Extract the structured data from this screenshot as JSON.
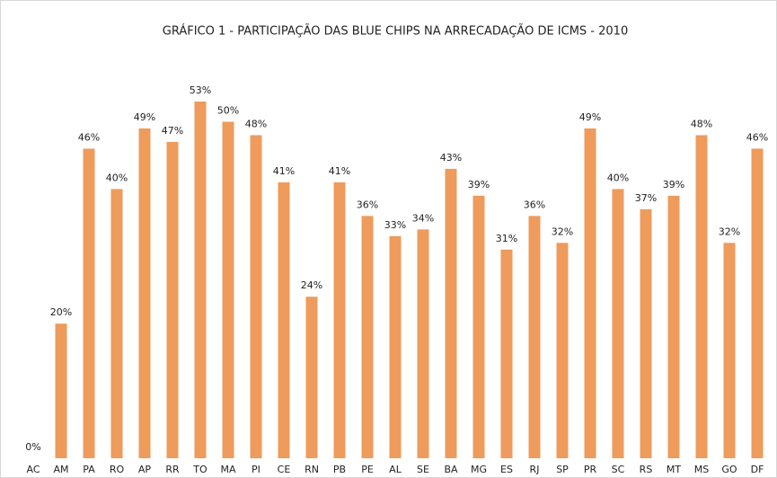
{
  "chart_data": {
    "type": "bar",
    "title": "GRÁFICO 1 - PARTICIPAÇÃO DAS BLUE CHIPS NA ARRECADAÇÃO DE ICMS - 2010",
    "categories": [
      "AC",
      "AM",
      "PA",
      "RO",
      "AP",
      "RR",
      "TO",
      "MA",
      "PI",
      "CE",
      "RN",
      "PB",
      "PE",
      "AL",
      "SE",
      "BA",
      "MG",
      "ES",
      "RJ",
      "SP",
      "PR",
      "SC",
      "RS",
      "MT",
      "MS",
      "GO",
      "DF"
    ],
    "values": [
      0,
      20,
      46,
      40,
      49,
      47,
      53,
      50,
      48,
      41,
      24,
      41,
      36,
      33,
      34,
      43,
      39,
      31,
      36,
      32,
      49,
      40,
      37,
      39,
      48,
      32,
      46
    ],
    "value_labels": [
      "0%",
      "20%",
      "46%",
      "40%",
      "49%",
      "47%",
      "53%",
      "50%",
      "48%",
      "41%",
      "24%",
      "41%",
      "36%",
      "33%",
      "34%",
      "43%",
      "39%",
      "31%",
      "36%",
      "32%",
      "49%",
      "40%",
      "37%",
      "39%",
      "48%",
      "32%",
      "46%"
    ],
    "color": "#ee9b5c"
  }
}
